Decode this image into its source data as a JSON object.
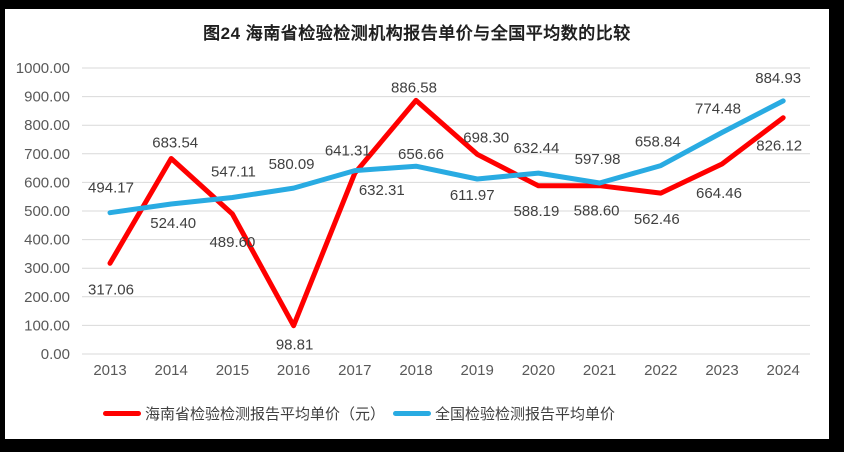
{
  "chart": {
    "title": "图24  海南省检验检测机构报告单价与全国平均数的比较"
  },
  "chart_data": {
    "type": "line",
    "title": "图24  海南省检验检测机构报告单价与全国平均数的比较",
    "categories": [
      "2013",
      "2014",
      "2015",
      "2016",
      "2017",
      "2018",
      "2019",
      "2020",
      "2021",
      "2022",
      "2023",
      "2024"
    ],
    "series": [
      {
        "name": "海南省检验检测报告平均单价（元）",
        "color": "#FF0000",
        "values": [
          317.06,
          683.54,
          489.6,
          98.81,
          632.31,
          886.58,
          698.3,
          588.19,
          588.6,
          562.46,
          664.46,
          826.12
        ]
      },
      {
        "name": "全国检验检测报告平均单价",
        "color": "#29ABE2",
        "values": [
          494.17,
          524.4,
          547.11,
          580.09,
          641.31,
          656.66,
          611.97,
          632.44,
          597.98,
          658.84,
          774.48,
          884.93
        ]
      }
    ],
    "ylim": [
      0,
      1000
    ],
    "ytick_step": 100,
    "ytick_labels": [
      "0.00",
      "100.00",
      "200.00",
      "300.00",
      "400.00",
      "500.00",
      "600.00",
      "700.00",
      "800.00",
      "900.00",
      "1000.00"
    ],
    "xlabel": "",
    "ylabel": "",
    "grid": true,
    "data_labels": true,
    "data_label_decimals": 2,
    "legend_position": "bottom",
    "colors": {
      "grid": "#D9D9D9",
      "axis_text": "#595959",
      "data_label_text": "#404040",
      "title_text": "#1F1F1F",
      "frame": "#000000",
      "background": "#FFFFFF"
    }
  },
  "legend": {
    "items": [
      {
        "label": "海南省检验检测报告平均单价（元）",
        "color": "#FF0000"
      },
      {
        "label": "全国检验检测报告平均单价",
        "color": "#29ABE2"
      }
    ]
  }
}
